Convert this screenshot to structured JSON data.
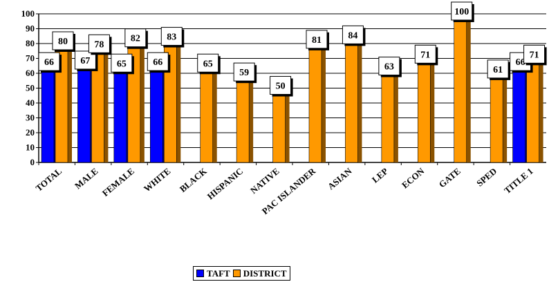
{
  "chart_data": {
    "type": "bar",
    "categories": [
      "TOTAL",
      "MALE",
      "FEMALE",
      "WHITE",
      "BLACK",
      "HISPANIC",
      "NATIVE",
      "PAC ISLANDER",
      "ASIAN",
      "LEP",
      "ECON",
      "GATE",
      "SPED",
      "TITLE 1"
    ],
    "series": [
      {
        "name": "TAFT",
        "color": "#0000ff",
        "values": [
          66,
          67,
          65,
          66,
          null,
          null,
          null,
          null,
          null,
          null,
          null,
          null,
          null,
          66
        ]
      },
      {
        "name": "DISTRICT",
        "color": "#ff9900",
        "values": [
          80,
          78,
          82,
          83,
          65,
          59,
          50,
          81,
          84,
          63,
          71,
          100,
          61,
          71
        ]
      }
    ],
    "ylim": [
      0,
      100
    ],
    "yticks": [
      0,
      10,
      20,
      30,
      40,
      50,
      60,
      70,
      80,
      90,
      100
    ],
    "grid": true,
    "legend_position": "bottom-center",
    "title": "",
    "xlabel": "",
    "ylabel": ""
  },
  "legend": {
    "items": [
      {
        "label": "TAFT",
        "color": "#0000ff"
      },
      {
        "label": "DISTRICT",
        "color": "#ff9900"
      }
    ]
  }
}
